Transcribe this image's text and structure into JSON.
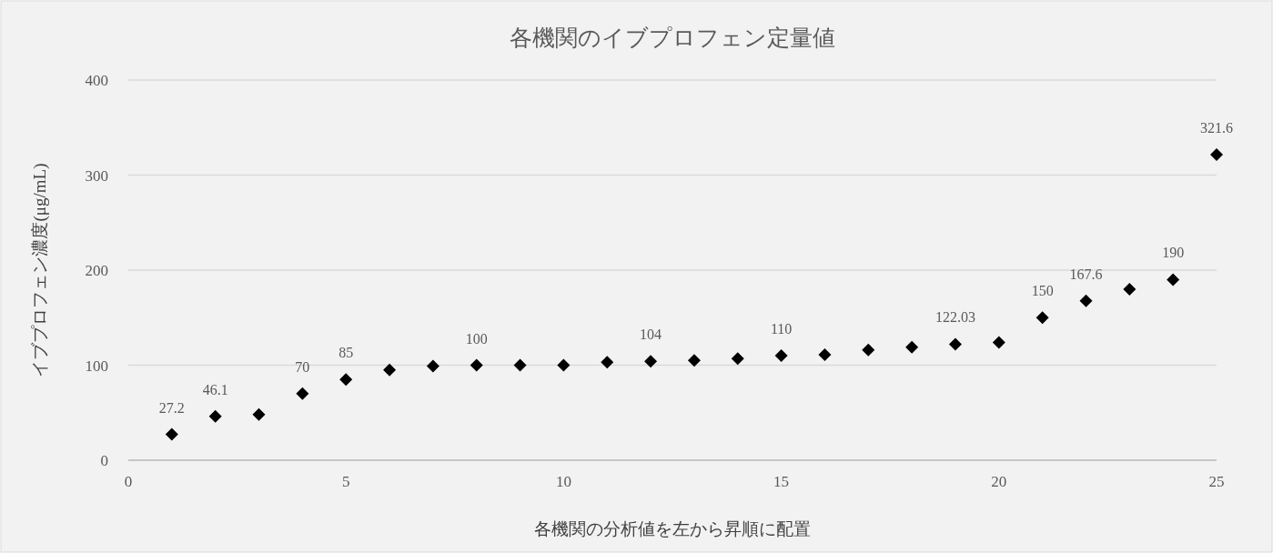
{
  "chart_data": {
    "type": "scatter",
    "title": "各機関のイブプロフェン定量値",
    "xlabel": "各機関の分析値を左から昇順に配置",
    "ylabel": "イブプロフェン濃度(μg/mL)",
    "x": [
      1,
      2,
      3,
      4,
      5,
      6,
      7,
      8,
      9,
      10,
      11,
      12,
      13,
      14,
      15,
      16,
      17,
      18,
      19,
      20,
      21,
      22,
      23,
      24,
      25
    ],
    "series": [
      {
        "color": "#000000",
        "values": [
          27.2,
          46.1,
          48,
          70,
          85,
          95,
          99,
          100,
          100,
          100,
          103,
          104,
          105,
          107,
          110,
          111,
          116,
          119,
          122.03,
          124,
          150,
          167.6,
          180,
          190,
          321.6
        ],
        "value_labels": [
          "27.2",
          "46.1",
          null,
          "70",
          "85",
          null,
          null,
          "100",
          null,
          null,
          null,
          "104",
          null,
          null,
          "110",
          null,
          null,
          null,
          "122.03",
          null,
          "150",
          "167.6",
          null,
          "190",
          "321.6"
        ]
      }
    ],
    "xlim": [
      0,
      25
    ],
    "xticks": [
      0,
      5,
      10,
      15,
      20,
      25
    ],
    "ylim": [
      0,
      400
    ],
    "yticks": [
      0,
      100,
      200,
      300,
      400
    ],
    "grid": "y",
    "marker": "diamond"
  }
}
